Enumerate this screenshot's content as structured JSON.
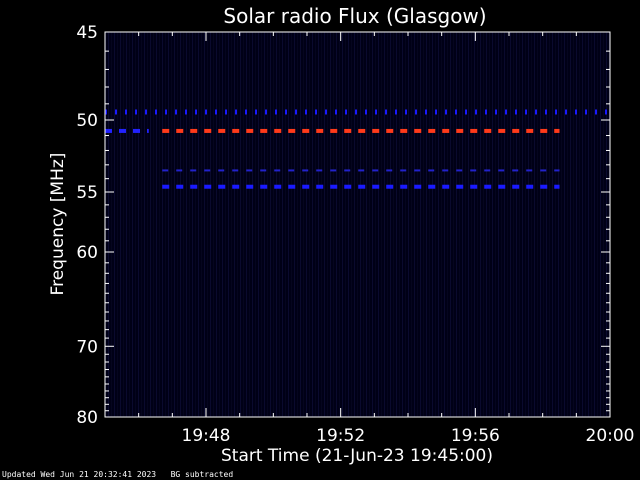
{
  "chart_data": {
    "type": "heatmap",
    "title": "Solar radio Flux (Glasgow)",
    "xlabel": "Start Time (21-Jun-23 19:45:00)",
    "ylabel": "Frequency [MHz]",
    "x_range_minutes": [
      0,
      15
    ],
    "x_tick_labels": [
      "19:48",
      "19:52",
      "19:56",
      "20:00"
    ],
    "x_tick_minutes": [
      3,
      7,
      11,
      15
    ],
    "y_range_mhz": [
      45,
      80
    ],
    "y_scale": "reciprocal",
    "y_tick_labels": [
      "45",
      "50",
      "55",
      "60",
      "70",
      "80"
    ],
    "y_tick_values": [
      45,
      50,
      55,
      60,
      70,
      80
    ],
    "background_color": "#00001a",
    "features": [
      {
        "frequency_mhz": 49.5,
        "start_min": 0.0,
        "end_min": 15.0,
        "color": "#1a1aff",
        "style": "faint-ticks"
      },
      {
        "frequency_mhz": 50.7,
        "start_min": 1.7,
        "end_min": 13.5,
        "color": "#ff3a1a",
        "style": "dashed"
      },
      {
        "frequency_mhz": 50.7,
        "start_min": 0.0,
        "end_min": 1.3,
        "color": "#2222ff",
        "style": "dashed"
      },
      {
        "frequency_mhz": 53.4,
        "start_min": 1.7,
        "end_min": 13.5,
        "color": "#2222cc",
        "style": "thin-dashed"
      },
      {
        "frequency_mhz": 54.6,
        "start_min": 1.7,
        "end_min": 13.5,
        "color": "#1a1aff",
        "style": "dashed"
      }
    ]
  },
  "footer": {
    "updated": "Updated Wed Jun 21 20:32:41 2023",
    "bg_note": "BG subtracted"
  }
}
